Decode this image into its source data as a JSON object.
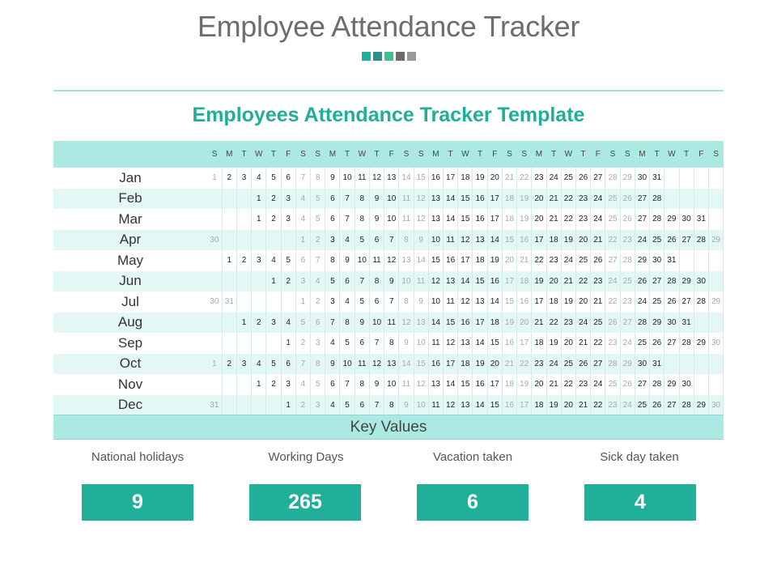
{
  "header": {
    "title": "Employee Attendance Tracker",
    "accent_squares": [
      "#20b09a",
      "#2b8f8b",
      "#3ebf95",
      "#6b6b6b",
      "#9a9a9a"
    ]
  },
  "table": {
    "title": "Employees Attendance Tracker Template",
    "day_headers": [
      "S",
      "M",
      "T",
      "W",
      "T",
      "F",
      "S",
      "S",
      "M",
      "T",
      "W",
      "T",
      "F",
      "S",
      "S",
      "M",
      "T",
      "W",
      "T",
      "F",
      "S",
      "S",
      "M",
      "T",
      "W",
      "T",
      "F",
      "S",
      "S",
      "M",
      "T",
      "W",
      "T",
      "F",
      "S"
    ],
    "months": [
      {
        "name": "Jan",
        "offset": 0
      },
      {
        "name": "Feb",
        "offset": 3
      },
      {
        "name": "Mar",
        "offset": 3
      },
      {
        "name": "Apr",
        "offset": 6,
        "prefix": [
          "30"
        ]
      },
      {
        "name": "May",
        "offset": 1
      },
      {
        "name": "Jun",
        "offset": 4
      },
      {
        "name": "Jul",
        "offset": 6,
        "prefix": [
          "30",
          "31"
        ]
      },
      {
        "name": "Aug",
        "offset": 2
      },
      {
        "name": "Sep",
        "offset": 5
      },
      {
        "name": "Oct",
        "offset": 0
      },
      {
        "name": "Nov",
        "offset": 3
      },
      {
        "name": "Dec",
        "offset": 5,
        "prefix": [
          "31"
        ]
      }
    ],
    "rows": [
      [
        "Jan",
        [
          "1",
          "2",
          "3",
          "4",
          "5",
          "6",
          "7",
          "8",
          "9",
          "10",
          "11",
          "12",
          "13",
          "14",
          "15",
          "16",
          "17",
          "18",
          "19",
          "20",
          "21",
          "22",
          "23",
          "24",
          "25",
          "26",
          "27",
          "28",
          "29",
          "30",
          "31",
          "",
          "",
          "",
          ""
        ]
      ],
      [
        "Feb",
        [
          "",
          "",
          "",
          "1",
          "2",
          "3",
          "4",
          "5",
          "6",
          "7",
          "8",
          "9",
          "10",
          "11",
          "12",
          "13",
          "14",
          "15",
          "16",
          "17",
          "18",
          "19",
          "20",
          "21",
          "22",
          "23",
          "24",
          "25",
          "26",
          "27",
          "28",
          "",
          "",
          "",
          ""
        ]
      ],
      [
        "Mar",
        [
          "",
          "",
          "",
          "1",
          "2",
          "3",
          "4",
          "5",
          "6",
          "7",
          "8",
          "9",
          "10",
          "11",
          "12",
          "13",
          "14",
          "15",
          "16",
          "17",
          "18",
          "19",
          "20",
          "21",
          "22",
          "23",
          "24",
          "25",
          "26",
          "27",
          "28",
          "29",
          "30",
          "31",
          ""
        ]
      ],
      [
        "Apr",
        [
          "30",
          "",
          "",
          "",
          "",
          "",
          "1",
          "2",
          "3",
          "4",
          "5",
          "6",
          "7",
          "8",
          "9",
          "10",
          "11",
          "12",
          "13",
          "14",
          "15",
          "16",
          "17",
          "18",
          "19",
          "20",
          "21",
          "22",
          "23",
          "24",
          "25",
          "26",
          "27",
          "28",
          "29"
        ]
      ],
      [
        "May",
        [
          "",
          "1",
          "2",
          "3",
          "4",
          "5",
          "6",
          "7",
          "8",
          "9",
          "10",
          "11",
          "12",
          "13",
          "14",
          "15",
          "16",
          "17",
          "18",
          "19",
          "20",
          "21",
          "22",
          "23",
          "24",
          "25",
          "26",
          "27",
          "28",
          "29",
          "30",
          "31",
          "",
          "",
          ""
        ]
      ],
      [
        "Jun",
        [
          "",
          "",
          "",
          "",
          "1",
          "2",
          "3",
          "4",
          "5",
          "6",
          "7",
          "8",
          "9",
          "10",
          "11",
          "12",
          "13",
          "14",
          "15",
          "16",
          "17",
          "18",
          "19",
          "20",
          "21",
          "22",
          "23",
          "24",
          "25",
          "26",
          "27",
          "28",
          "29",
          "30",
          ""
        ]
      ],
      [
        "Jul",
        [
          "30",
          "31",
          "",
          "",
          "",
          "",
          "1",
          "2",
          "3",
          "4",
          "5",
          "6",
          "7",
          "8",
          "9",
          "10",
          "11",
          "12",
          "13",
          "14",
          "15",
          "16",
          "17",
          "18",
          "19",
          "20",
          "21",
          "22",
          "23",
          "24",
          "25",
          "26",
          "27",
          "28",
          "29"
        ]
      ],
      [
        "Aug",
        [
          "",
          "",
          "1",
          "2",
          "3",
          "4",
          "5",
          "6",
          "7",
          "8",
          "9",
          "10",
          "11",
          "12",
          "13",
          "14",
          "15",
          "16",
          "17",
          "18",
          "19",
          "20",
          "21",
          "22",
          "23",
          "24",
          "25",
          "26",
          "27",
          "28",
          "29",
          "30",
          "31",
          "",
          ""
        ]
      ],
      [
        "Sep",
        [
          "",
          "",
          "",
          "",
          "",
          "1",
          "2",
          "3",
          "4",
          "5",
          "6",
          "7",
          "8",
          "9",
          "10",
          "11",
          "12",
          "13",
          "14",
          "15",
          "16",
          "17",
          "18",
          "19",
          "20",
          "21",
          "22",
          "23",
          "24",
          "25",
          "26",
          "27",
          "28",
          "29",
          "30"
        ]
      ],
      [
        "Oct",
        [
          "1",
          "2",
          "3",
          "4",
          "5",
          "6",
          "7",
          "8",
          "9",
          "10",
          "11",
          "12",
          "13",
          "14",
          "15",
          "16",
          "17",
          "18",
          "19",
          "20",
          "21",
          "22",
          "23",
          "24",
          "25",
          "26",
          "27",
          "28",
          "29",
          "30",
          "31",
          "",
          "",
          "",
          ""
        ]
      ],
      [
        "Nov",
        [
          "",
          "",
          "",
          "1",
          "2",
          "3",
          "4",
          "5",
          "6",
          "7",
          "8",
          "9",
          "10",
          "11",
          "12",
          "13",
          "14",
          "15",
          "16",
          "17",
          "18",
          "19",
          "20",
          "21",
          "22",
          "23",
          "24",
          "25",
          "26",
          "27",
          "28",
          "29",
          "30",
          "",
          ""
        ]
      ],
      [
        "Dec",
        [
          "31",
          "",
          "",
          "",
          "",
          "1",
          "2",
          "3",
          "4",
          "5",
          "6",
          "7",
          "8",
          "9",
          "10",
          "11",
          "12",
          "13",
          "14",
          "15",
          "16",
          "17",
          "18",
          "19",
          "20",
          "21",
          "22",
          "23",
          "24",
          "25",
          "26",
          "27",
          "28",
          "29",
          "30"
        ]
      ]
    ]
  },
  "key": {
    "title": "Key  Values",
    "stats": [
      {
        "label": "National holidays",
        "value": "9"
      },
      {
        "label": "Working  Days",
        "value": "265"
      },
      {
        "label": "Vacation taken",
        "value": "6"
      },
      {
        "label": "Sick day taken",
        "value": "4"
      }
    ]
  },
  "colors": {
    "accent": "#20b09a",
    "title_text": "#1fae98",
    "header_fill": "#ace9e3",
    "row_shade": "#e3f7f5",
    "weekend_text": "#a9a9a9"
  }
}
